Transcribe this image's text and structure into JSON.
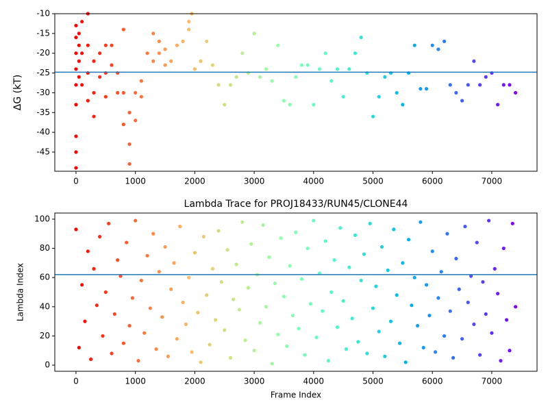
{
  "chart_data": [
    {
      "type": "scatter",
      "ylabel": "ΔG (kT)",
      "colormap": "rainbow_r",
      "xlim": [
        -357,
        7762
      ],
      "ylim": [
        -49.85,
        -10
      ],
      "xticks": [
        0,
        1000,
        2000,
        3000,
        4000,
        5000,
        6000,
        7000
      ],
      "yticks": [
        -45,
        -40,
        -35,
        -30,
        -25,
        -20,
        -15,
        -10
      ],
      "hline": -24.8,
      "hline_color": "#1f77b4",
      "x": [
        0,
        0,
        0,
        0,
        0,
        0,
        0,
        0,
        0,
        50,
        50,
        50,
        50,
        100,
        100,
        100,
        200,
        200,
        200,
        200,
        300,
        300,
        300,
        400,
        400,
        500,
        500,
        500,
        600,
        600,
        700,
        700,
        800,
        800,
        800,
        900,
        900,
        900,
        1000,
        1000,
        1100,
        1100,
        1200,
        1300,
        1300,
        1400,
        1400,
        1500,
        1500,
        1600,
        1700,
        1800,
        1900,
        1900,
        1950,
        2000,
        2100,
        2200,
        2300,
        2400,
        2500,
        2600,
        2700,
        2800,
        2900,
        3000,
        3100,
        3200,
        3300,
        3400,
        3500,
        3600,
        3700,
        3800,
        3900,
        4000,
        4100,
        4200,
        4300,
        4400,
        4500,
        4600,
        4700,
        4800,
        4900,
        5000,
        5100,
        5200,
        5300,
        5400,
        5500,
        5600,
        5700,
        5800,
        5900,
        6000,
        6100,
        6200,
        6300,
        6400,
        6500,
        6600,
        6700,
        6800,
        6900,
        7000,
        7100,
        7200,
        7300,
        7400
      ],
      "values": [
        -13,
        -16,
        -20,
        -24,
        -28,
        -33,
        -41,
        -45,
        -49,
        -15,
        -18,
        -22,
        -26,
        -12,
        -20,
        -28,
        -10,
        -18,
        -25,
        -32,
        -22,
        -30,
        -36,
        -20,
        -26,
        -18,
        -25,
        -31,
        -18,
        -23,
        -25,
        -30,
        -14,
        -30,
        -38,
        -43,
        -48,
        -35,
        -37,
        -30,
        -27,
        -31,
        -20,
        -15,
        -22,
        -17,
        -20,
        -19,
        -23,
        -22,
        -18,
        -17,
        -14,
        -12,
        -10,
        -24,
        -22,
        -17,
        -23,
        -28,
        -33,
        -28,
        -26,
        -20,
        -25,
        -15,
        -26,
        -24,
        -27,
        -18,
        -32,
        -33,
        -26,
        -23,
        -23,
        -33,
        -24,
        -20,
        -27,
        -24,
        -31,
        -24,
        -20,
        -16,
        -25,
        -36,
        -31,
        -26,
        -25,
        -30,
        -33,
        -25,
        -18,
        -29,
        -29,
        -18,
        -19,
        -17,
        -28,
        -30,
        -32,
        -28,
        -22,
        -28,
        -26,
        -25,
        -33,
        -28,
        -28,
        -30
      ]
    },
    {
      "type": "scatter",
      "title": "Lambda Trace for PROJ18433/RUN45/CLONE44",
      "xlabel": "Frame Index",
      "ylabel": "Lambda Index",
      "colormap": "rainbow_r",
      "xlim": [
        -357,
        7762
      ],
      "ylim": [
        -4.2,
        104.2
      ],
      "xticks": [
        0,
        1000,
        2000,
        3000,
        4000,
        5000,
        6000,
        7000
      ],
      "yticks": [
        0,
        20,
        40,
        60,
        80,
        100
      ],
      "hline": 62,
      "hline_color": "#1f77b4",
      "x": [
        0,
        50,
        100,
        150,
        200,
        250,
        300,
        350,
        400,
        450,
        500,
        550,
        600,
        650,
        700,
        750,
        800,
        850,
        900,
        950,
        1000,
        1050,
        1100,
        1150,
        1200,
        1250,
        1300,
        1350,
        1400,
        1450,
        1500,
        1550,
        1600,
        1650,
        1700,
        1750,
        1800,
        1850,
        1900,
        1950,
        2000,
        2050,
        2100,
        2150,
        2200,
        2250,
        2300,
        2350,
        2400,
        2450,
        2500,
        2550,
        2600,
        2650,
        2700,
        2750,
        2800,
        2850,
        2900,
        2950,
        3000,
        3050,
        3100,
        3150,
        3200,
        3250,
        3300,
        3350,
        3400,
        3450,
        3500,
        3550,
        3600,
        3650,
        3700,
        3750,
        3800,
        3850,
        3900,
        3950,
        4000,
        4050,
        4100,
        4150,
        4200,
        4250,
        4300,
        4350,
        4400,
        4450,
        4500,
        4550,
        4600,
        4650,
        4700,
        4750,
        4800,
        4850,
        4900,
        4950,
        5000,
        5050,
        5100,
        5150,
        5200,
        5250,
        5300,
        5350,
        5400,
        5450,
        5500,
        5550,
        5600,
        5650,
        5700,
        5750,
        5800,
        5850,
        5900,
        5950,
        6000,
        6050,
        6100,
        6150,
        6200,
        6250,
        6300,
        6350,
        6400,
        6450,
        6500,
        6550,
        6600,
        6650,
        6700,
        6750,
        6800,
        6850,
        6900,
        6950,
        7000,
        7050,
        7100,
        7150,
        7200,
        7250,
        7300,
        7350,
        7400
      ],
      "values": [
        93,
        12,
        55,
        30,
        78,
        4,
        66,
        41,
        88,
        20,
        50,
        97,
        8,
        35,
        72,
        61,
        15,
        84,
        27,
        46,
        99,
        3,
        58,
        22,
        75,
        39,
        90,
        11,
        64,
        33,
        81,
        6,
        52,
        70,
        18,
        95,
        43,
        28,
        60,
        9,
        77,
        36,
        2,
        88,
        48,
        14,
        66,
        31,
        92,
        57,
        24,
        79,
        5,
        45,
        69,
        38,
        98,
        17,
        53,
        83,
        10,
        62,
        29,
        96,
        40,
        74,
        1,
        56,
        21,
        87,
        47,
        13,
        68,
        34,
        91,
        25,
        59,
        7,
        80,
        42,
        99,
        19,
        63,
        37,
        85,
        3,
        50,
        72,
        26,
        94,
        44,
        11,
        67,
        32,
        89,
        16,
        58,
        76,
        8,
        97,
        39,
        54,
        23,
        81,
        6,
        65,
        30,
        93,
        48,
        15,
        70,
        2,
        86,
        41,
        60,
        27,
        98,
        12,
        55,
        34,
        78,
        9,
        46,
        64,
        20,
        90,
        37,
        5,
        73,
        52,
        18,
        95,
        43,
        61,
        28,
        84,
        7,
        57,
        35,
        99,
        22,
        66,
        49,
        3,
        80,
        31,
        10,
        97,
        40
      ]
    }
  ]
}
